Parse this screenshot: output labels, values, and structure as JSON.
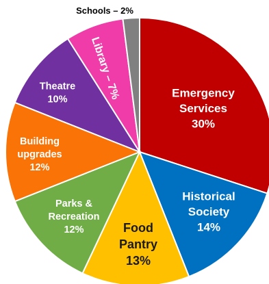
{
  "chart_data": {
    "type": "pie",
    "title": "",
    "slices": [
      {
        "label": "Emergency Services",
        "lines": [
          "Emergency",
          "Services"
        ],
        "value": 30,
        "value_label": "30%",
        "color": "#C00000",
        "text_color": "#ffffff"
      },
      {
        "label": "Historical Society",
        "lines": [
          "Historical",
          "Society"
        ],
        "value": 14,
        "value_label": "14%",
        "color": "#0070C0",
        "text_color": "#ffffff"
      },
      {
        "label": "Food Pantry",
        "lines": [
          "Food",
          "Pantry"
        ],
        "value": 13,
        "value_label": "13%",
        "color": "#FFC000",
        "text_color": "#1a1a1a"
      },
      {
        "label": "Parks & Recreation",
        "lines": [
          "Parks &",
          "Recreation"
        ],
        "value": 12,
        "value_label": "12%",
        "color": "#70AD47",
        "text_color": "#ffffff"
      },
      {
        "label": "Building upgrades",
        "lines": [
          "Building",
          "upgrades"
        ],
        "value": 12,
        "value_label": "12%",
        "color": "#F97306",
        "text_color": "#ffffff"
      },
      {
        "label": "Theatre",
        "lines": [
          "Theatre"
        ],
        "value": 10,
        "value_label": "10%",
        "color": "#7030A0",
        "text_color": "#ffffff"
      },
      {
        "label": "Library",
        "lines": [
          "Library – 7%"
        ],
        "value": 7,
        "value_label": "7%",
        "color": "#F03CA8",
        "text_color": "#ffffff"
      },
      {
        "label": "Schools",
        "lines": [
          "Schools – 2%"
        ],
        "value": 2,
        "value_label": "2%",
        "color": "#808080",
        "text_color": "#000000"
      }
    ]
  }
}
